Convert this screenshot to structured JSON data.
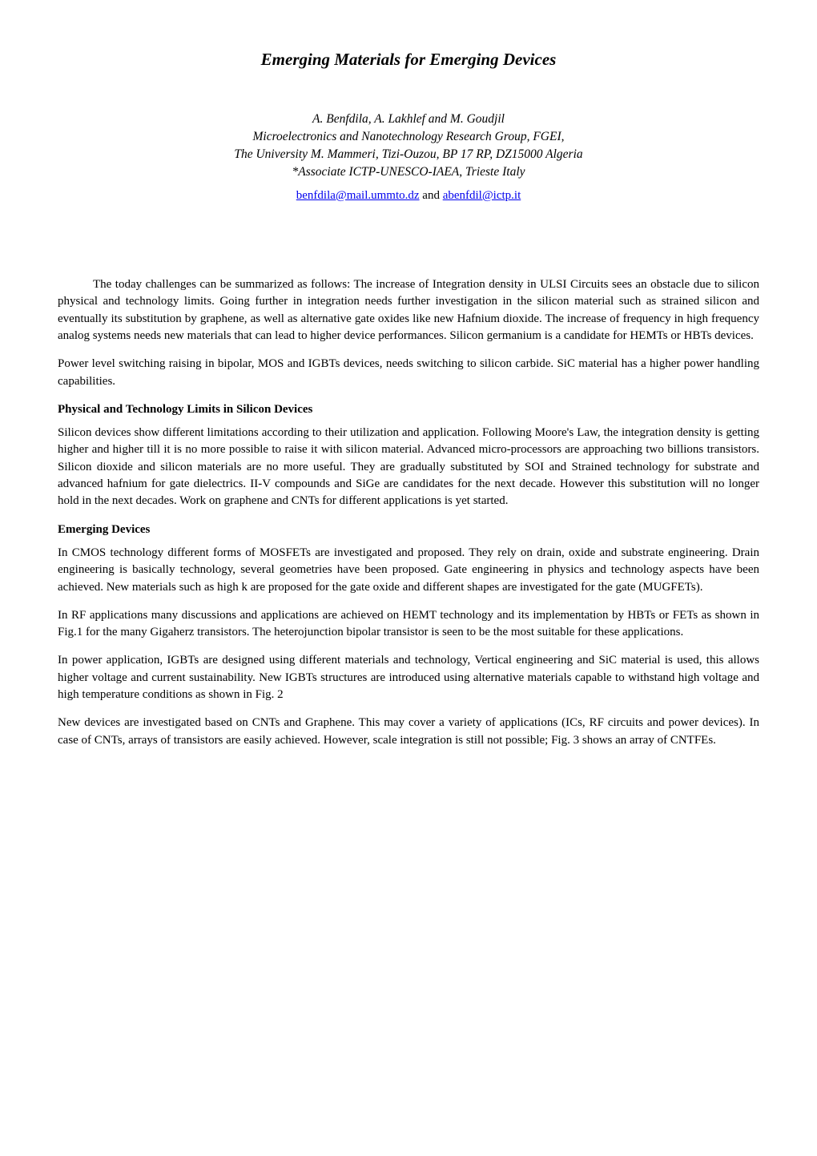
{
  "title": "Emerging Materials for Emerging Devices",
  "authors_line": "A. Benfdila, A. Lakhlef and M. Goudjil",
  "affiliation_line1": "Microelectronics and Nanotechnology Research Group, FGEI,",
  "affiliation_line2": "The University M. Mammeri, Tizi-Ouzou, BP 17 RP, DZ15000 Algeria",
  "affiliation_line3": "*Associate ICTP-UNESCO-IAEA, Trieste Italy",
  "email1": "benfdila@mail.ummto.dz",
  "email_sep": " and ",
  "email2": "abenfdil@ictp.it",
  "intro_p1": "The today challenges can be summarized as follows: The increase of Integration density in ULSI Circuits sees an obstacle due to silicon physical and technology limits. Going further in integration needs further investigation in the silicon material such as strained silicon and eventually its substitution by graphene, as well as alternative gate oxides like new Hafnium dioxide. The increase of frequency in high frequency analog systems needs new materials that can lead to higher device performances. Silicon germanium is a candidate for HEMTs or HBTs devices.",
  "intro_p2": "Power level switching raising in bipolar, MOS and IGBTs devices, needs switching to silicon carbide. SiC material has a higher power handling capabilities.",
  "section1_heading": "Physical and Technology Limits in Silicon Devices",
  "section1_p1": "Silicon devices show different limitations according to their utilization and application. Following Moore's Law, the integration density is getting higher and higher till it is no more possible to raise it with silicon material. Advanced micro-processors are approaching two billions transistors. Silicon dioxide and silicon materials are no more useful. They are gradually substituted by SOI and Strained technology for substrate and advanced hafnium for gate dielectrics. II-V compounds and SiGe are candidates for the next decade. However this substitution will no longer hold in the next decades. Work on graphene and CNTs for different applications is yet started.",
  "section2_heading": "Emerging Devices",
  "section2_p1": "In CMOS technology different forms of MOSFETs are investigated and proposed. They rely on drain, oxide and substrate engineering. Drain engineering is basically technology, several geometries have been proposed. Gate engineering in physics and technology aspects have been achieved. New materials such as high k are proposed for the gate oxide and different shapes are investigated for the gate (MUGFETs).",
  "section2_p2": "In RF applications many discussions and applications are achieved on HEMT technology and its implementation by HBTs or FETs as shown in Fig.1 for the many Gigaherz transistors. The heterojunction bipolar transistor is seen to be the most suitable for these applications.",
  "section2_p3": "In power application, IGBTs are designed using different materials and technology, Vertical engineering and SiC material is used, this allows higher voltage and current sustainability. New IGBTs structures are introduced using alternative materials capable to withstand high voltage and high temperature conditions as shown in Fig. 2",
  "section2_p4": "New devices are investigated based on CNTs and Graphene. This may cover a variety of applications (ICs, RF circuits and power devices). In case of CNTs, arrays of transistors are easily achieved. However, scale integration is still not possible; Fig. 3 shows an array of CNTFEs.",
  "colors": {
    "text": "#000000",
    "link": "#0000ee",
    "background": "#ffffff"
  },
  "typography": {
    "body_font": "Times New Roman",
    "body_size_pt": 11,
    "title_size_pt": 16,
    "title_weight": "bold",
    "title_style": "italic"
  }
}
